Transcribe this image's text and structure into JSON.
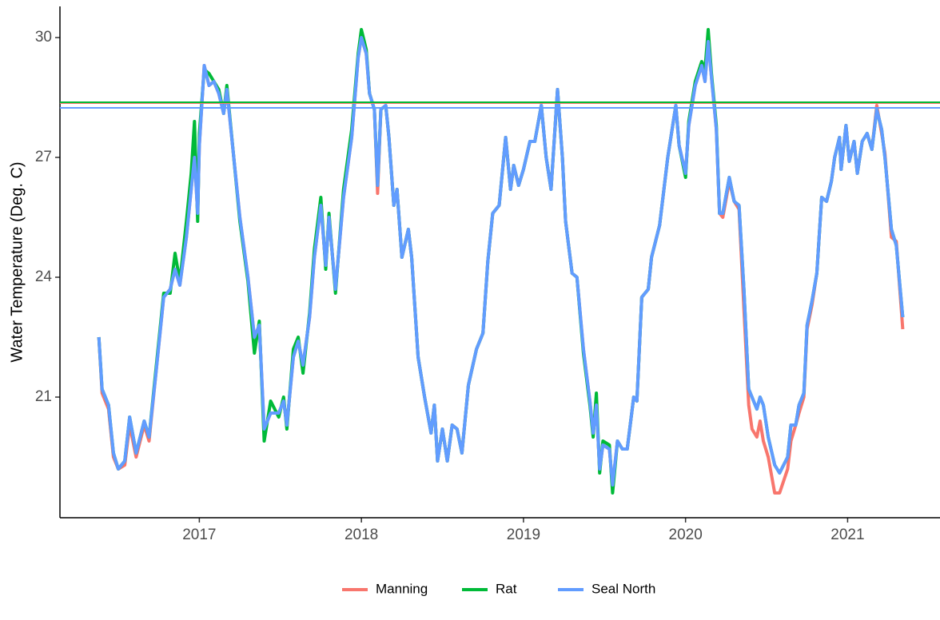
{
  "chart_data": {
    "type": "line",
    "y_label": "Water Temperature (Deg. C)",
    "x": [
      2016.38,
      2016.4,
      2016.44,
      2016.47,
      2016.5,
      2016.54,
      2016.57,
      2016.61,
      2016.66,
      2016.69,
      2016.73,
      2016.78,
      2016.82,
      2016.85,
      2016.88,
      2016.92,
      2016.95,
      2016.97,
      2016.99,
      2017.0,
      2017.03,
      2017.06,
      2017.09,
      2017.12,
      2017.15,
      2017.17,
      2017.25,
      2017.3,
      2017.34,
      2017.37,
      2017.4,
      2017.44,
      2017.49,
      2017.52,
      2017.54,
      2017.58,
      2017.61,
      2017.64,
      2017.68,
      2017.71,
      2017.75,
      2017.78,
      2017.8,
      2017.84,
      2017.89,
      2017.94,
      2017.98,
      2018.0,
      2018.03,
      2018.05,
      2018.08,
      2018.1,
      2018.12,
      2018.15,
      2018.17,
      2018.2,
      2018.22,
      2018.25,
      2018.29,
      2018.31,
      2018.35,
      2018.39,
      2018.43,
      2018.45,
      2018.47,
      2018.5,
      2018.53,
      2018.56,
      2018.59,
      2018.62,
      2018.66,
      2018.71,
      2018.75,
      2018.78,
      2018.81,
      2018.85,
      2018.89,
      2018.92,
      2018.94,
      2018.97,
      2019.0,
      2019.04,
      2019.07,
      2019.11,
      2019.14,
      2019.17,
      2019.21,
      2019.24,
      2019.26,
      2019.3,
      2019.33,
      2019.37,
      2019.41,
      2019.43,
      2019.45,
      2019.47,
      2019.49,
      2019.53,
      2019.55,
      2019.58,
      2019.61,
      2019.64,
      2019.68,
      2019.7,
      2019.73,
      2019.77,
      2019.79,
      2019.84,
      2019.89,
      2019.94,
      2019.96,
      2020.0,
      2020.02,
      2020.06,
      2020.1,
      2020.12,
      2020.14,
      2020.16,
      2020.19,
      2020.21,
      2020.23,
      2020.27,
      2020.3,
      2020.33,
      2020.36,
      2020.39,
      2020.41,
      2020.44,
      2020.46,
      2020.48,
      2020.51,
      2020.55,
      2020.58,
      2020.63,
      2020.65,
      2020.68,
      2020.7,
      2020.73,
      2020.75,
      2020.78,
      2020.81,
      2020.84,
      2020.87,
      2020.9,
      2020.92,
      2020.95,
      2020.96,
      2020.99,
      2021.01,
      2021.04,
      2021.06,
      2021.09,
      2021.12,
      2021.15,
      2021.18,
      2021.21,
      2021.23,
      2021.27,
      2021.3,
      2021.34
    ],
    "series": [
      {
        "name": "Manning",
        "color": "#F8766D",
        "values": [
          22.5,
          21.1,
          20.7,
          19.5,
          19.2,
          19.3,
          20.3,
          19.5,
          20.3,
          19.9,
          21.5,
          23.5,
          23.7,
          24.2,
          23.8,
          25.0,
          26.2,
          27.0,
          25.6,
          27.3,
          29.3,
          28.8,
          28.9,
          28.6,
          28.1,
          28.7,
          25.5,
          24.0,
          22.5,
          22.8,
          20.2,
          20.6,
          20.6,
          20.9,
          20.3,
          22.0,
          22.4,
          21.8,
          23.0,
          24.5,
          25.8,
          24.3,
          25.5,
          23.7,
          26.0,
          27.5,
          29.5,
          30.0,
          29.6,
          28.6,
          28.2,
          26.1,
          28.2,
          28.3,
          27.5,
          25.8,
          26.2,
          24.5,
          25.2,
          24.5,
          22.0,
          21.0,
          20.1,
          20.8,
          19.4,
          20.2,
          19.4,
          20.3,
          20.2,
          19.6,
          21.3,
          22.2,
          22.6,
          24.4,
          25.6,
          25.8,
          27.5,
          26.2,
          26.8,
          26.3,
          26.7,
          27.4,
          27.4,
          28.3,
          27.0,
          26.2,
          28.7,
          27.0,
          25.4,
          24.1,
          24.0,
          22.2,
          20.9,
          20.1,
          20.8,
          19.2,
          19.8,
          19.7,
          18.8,
          19.9,
          19.7,
          19.7,
          21.0,
          20.9,
          23.5,
          23.7,
          24.5,
          25.3,
          27.0,
          28.3,
          27.3,
          26.6,
          27.8,
          28.8,
          29.3,
          28.9,
          29.9,
          29.0,
          27.7,
          25.6,
          25.5,
          26.4,
          25.9,
          25.7,
          23.2,
          20.8,
          20.2,
          20.0,
          20.4,
          19.9,
          19.5,
          18.6,
          18.6,
          19.2,
          19.9,
          20.3,
          20.6,
          21.0,
          22.7,
          23.3,
          24.1,
          26.0,
          25.9,
          26.4,
          27.0,
          27.5,
          26.7,
          27.8,
          26.9,
          27.4,
          26.6,
          27.4,
          27.6,
          27.2,
          28.3,
          27.6,
          27.1,
          25.0,
          24.9,
          22.7
        ]
      },
      {
        "name": "Rat",
        "color": "#00BA38",
        "values": [
          22.5,
          21.2,
          20.8,
          19.6,
          19.2,
          19.4,
          20.5,
          19.6,
          20.4,
          20.0,
          21.6,
          23.6,
          23.6,
          24.6,
          23.9,
          25.4,
          26.6,
          27.9,
          25.4,
          27.6,
          29.2,
          29.1,
          28.9,
          28.7,
          28.1,
          28.8,
          25.4,
          23.9,
          22.1,
          22.9,
          19.9,
          20.9,
          20.5,
          21.0,
          20.2,
          22.2,
          22.5,
          21.6,
          23.1,
          24.7,
          26.0,
          24.2,
          25.6,
          23.6,
          26.2,
          27.7,
          29.6,
          30.2,
          29.7,
          28.6,
          28.2,
          26.3,
          28.2,
          28.3,
          27.5,
          25.8,
          26.2,
          24.5,
          25.2,
          24.5,
          22.0,
          21.0,
          20.1,
          20.8,
          19.4,
          20.2,
          19.4,
          20.3,
          20.2,
          19.6,
          21.3,
          22.2,
          22.6,
          24.4,
          25.6,
          25.8,
          27.5,
          26.2,
          26.8,
          26.3,
          26.7,
          27.4,
          27.4,
          28.3,
          27.0,
          26.2,
          28.7,
          27.0,
          25.4,
          24.1,
          24.0,
          22.1,
          20.8,
          20.0,
          21.1,
          19.1,
          19.9,
          19.8,
          18.6,
          19.9,
          19.7,
          19.7,
          21.0,
          20.9,
          23.5,
          23.7,
          24.5,
          25.3,
          27.0,
          28.3,
          27.3,
          26.5,
          27.9,
          28.9,
          29.4,
          29.2,
          30.2,
          29.1,
          27.8,
          25.6,
          25.6,
          26.5,
          25.9,
          25.8,
          23.7,
          21.2,
          21.0,
          20.7,
          21.0,
          20.8,
          20.0,
          19.3,
          19.1,
          19.5,
          20.3,
          20.3,
          20.8,
          21.1,
          22.8,
          23.4,
          24.1,
          26.0,
          25.9,
          26.4,
          27.0,
          27.5,
          26.7,
          27.8,
          26.9,
          27.4,
          26.6,
          27.4,
          27.6,
          27.2,
          28.2,
          27.7,
          27.0,
          25.2,
          24.8,
          23.0
        ]
      },
      {
        "name": "Seal North",
        "color": "#619CFF",
        "values": [
          22.5,
          21.2,
          20.8,
          19.6,
          19.2,
          19.4,
          20.5,
          19.6,
          20.4,
          20.0,
          21.5,
          23.5,
          23.7,
          24.2,
          23.8,
          25.0,
          26.2,
          27.0,
          25.6,
          27.3,
          29.3,
          28.8,
          28.9,
          28.6,
          28.1,
          28.7,
          25.5,
          24.0,
          22.5,
          22.8,
          20.2,
          20.6,
          20.6,
          20.9,
          20.3,
          22.0,
          22.4,
          21.8,
          23.0,
          24.5,
          25.8,
          24.3,
          25.5,
          23.7,
          26.0,
          27.5,
          29.5,
          30.0,
          29.6,
          28.6,
          28.2,
          26.3,
          28.2,
          28.3,
          27.5,
          25.8,
          26.2,
          24.5,
          25.2,
          24.5,
          22.0,
          21.0,
          20.1,
          20.8,
          19.4,
          20.2,
          19.4,
          20.3,
          20.2,
          19.6,
          21.3,
          22.2,
          22.6,
          24.4,
          25.6,
          25.8,
          27.5,
          26.2,
          26.8,
          26.3,
          26.7,
          27.4,
          27.4,
          28.3,
          27.0,
          26.2,
          28.7,
          27.0,
          25.4,
          24.1,
          24.0,
          22.2,
          20.9,
          20.1,
          20.8,
          19.2,
          19.8,
          19.7,
          18.8,
          19.9,
          19.7,
          19.7,
          21.0,
          20.9,
          23.5,
          23.7,
          24.5,
          25.3,
          27.0,
          28.3,
          27.3,
          26.6,
          27.8,
          28.8,
          29.3,
          28.9,
          29.9,
          29.0,
          27.7,
          25.6,
          25.6,
          26.5,
          25.9,
          25.8,
          23.7,
          21.2,
          21.0,
          20.7,
          21.0,
          20.8,
          20.0,
          19.3,
          19.1,
          19.5,
          20.3,
          20.3,
          20.8,
          21.1,
          22.8,
          23.4,
          24.1,
          26.0,
          25.9,
          26.4,
          27.0,
          27.5,
          26.7,
          27.8,
          26.9,
          27.4,
          26.6,
          27.4,
          27.6,
          27.2,
          28.2,
          27.7,
          27.0,
          25.2,
          24.8,
          23.0
        ]
      }
    ],
    "hlines": [
      {
        "value": 28.36,
        "color": "#F8766D"
      },
      {
        "value": 28.38,
        "color": "#00BA38"
      },
      {
        "value": 28.24,
        "color": "#619CFF"
      }
    ],
    "xlim": [
      2016.14,
      2021.57
    ],
    "xticks": [
      2017,
      2018,
      2019,
      2020,
      2021
    ],
    "ylim": [
      17.98,
      30.78
    ],
    "yticks": [
      21,
      24,
      27,
      30
    ],
    "legend": "bottom"
  }
}
